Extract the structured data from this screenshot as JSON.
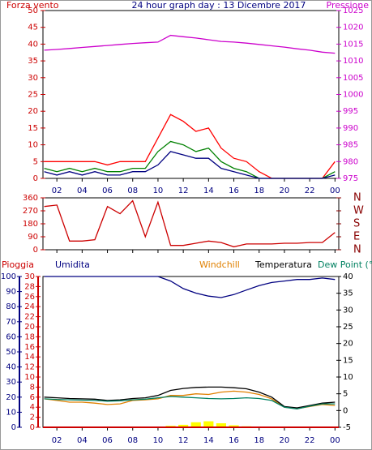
{
  "chart_data": [
    {
      "type": "line",
      "title": "24 hour graph day : 13 Dicembre 2017",
      "y_label": "Forza vento",
      "y2_label": "Pressione",
      "x": [
        1,
        2,
        3,
        4,
        5,
        6,
        7,
        8,
        9,
        10,
        11,
        12,
        13,
        14,
        15,
        16,
        17,
        18,
        19,
        20,
        21,
        22,
        23,
        24
      ],
      "xlim": [
        0.9,
        24.3
      ],
      "xticks": [
        {
          "value": 2,
          "label": "02"
        },
        {
          "value": 4,
          "label": "04"
        },
        {
          "value": 6,
          "label": "06"
        },
        {
          "value": 8,
          "label": "08"
        },
        10,
        12,
        14,
        16,
        18,
        20,
        22,
        {
          "value": 24,
          "label": "00"
        }
      ],
      "ylim": [
        0,
        50
      ],
      "yticks": [
        0,
        5,
        10,
        15,
        20,
        25,
        30,
        35,
        40,
        45,
        50
      ],
      "y2lim": [
        975,
        1025
      ],
      "y2ticks": [
        975,
        980,
        985,
        990,
        995,
        1000,
        1005,
        1010,
        1015,
        1020,
        1025
      ],
      "series": [
        {
          "color": "#cc00cc",
          "axis": "y2",
          "values": [
            1013.2,
            1013.4,
            1013.7,
            1014.0,
            1014.3,
            1014.6,
            1014.9,
            1015.2,
            1015.4,
            1015.6,
            1017.6,
            1017.2,
            1016.8,
            1016.3,
            1015.8,
            1015.6,
            1015.3,
            1014.9,
            1014.5,
            1014.1,
            1013.6,
            1013.2,
            1012.6,
            1012.3
          ]
        },
        {
          "color": "#ff0000",
          "values": [
            5,
            5,
            5,
            5,
            5,
            4,
            5,
            5,
            5,
            12,
            19,
            17,
            14,
            15,
            9,
            6,
            5,
            2,
            0,
            0,
            0,
            0,
            0,
            5
          ]
        },
        {
          "color": "#008000",
          "values": [
            3,
            2,
            3,
            2,
            3,
            2,
            2,
            3,
            3,
            8,
            11,
            10,
            8,
            9,
            5,
            3,
            2,
            0,
            0,
            0,
            0,
            0,
            0,
            2
          ]
        },
        {
          "color": "#000080",
          "values": [
            2,
            1,
            2,
            1,
            2,
            1,
            1,
            2,
            2,
            4,
            8,
            7,
            6,
            6,
            3,
            2,
            1,
            0,
            0,
            0,
            0,
            0,
            0,
            1
          ]
        }
      ]
    },
    {
      "type": "line",
      "x": [
        1,
        2,
        3,
        4,
        5,
        6,
        7,
        8,
        9,
        10,
        11,
        12,
        13,
        14,
        15,
        16,
        17,
        18,
        19,
        20,
        21,
        22,
        23,
        24
      ],
      "xlim": [
        0.9,
        24.3
      ],
      "xticks": [
        2,
        4,
        6,
        8,
        10,
        12,
        14,
        16,
        18,
        20,
        22,
        24
      ],
      "ylim": [
        0,
        360
      ],
      "yticks": [
        0,
        90,
        180,
        270,
        360
      ],
      "y2lim": [
        0,
        360
      ],
      "y2ticks": [
        {
          "value": 0,
          "label": "N"
        },
        {
          "value": 90,
          "label": "E"
        },
        {
          "value": 180,
          "label": "S"
        },
        {
          "value": 270,
          "label": "W"
        },
        {
          "value": 360,
          "label": "N"
        }
      ],
      "series": [
        {
          "color": "#cc0000",
          "values": [
            300,
            310,
            60,
            60,
            70,
            300,
            250,
            340,
            90,
            330,
            30,
            30,
            45,
            60,
            50,
            20,
            40,
            40,
            40,
            45,
            45,
            50,
            50,
            120
          ]
        }
      ]
    },
    {
      "type": "line",
      "x": [
        1,
        2,
        3,
        4,
        5,
        6,
        7,
        8,
        9,
        10,
        11,
        12,
        13,
        14,
        15,
        16,
        17,
        18,
        19,
        20,
        21,
        22,
        23,
        24
      ],
      "xlim": [
        0.9,
        24.3
      ],
      "xticks": [
        {
          "value": 2,
          "label": "02"
        },
        {
          "value": 4,
          "label": "04"
        },
        {
          "value": 6,
          "label": "06"
        },
        {
          "value": 8,
          "label": "08"
        },
        10,
        12,
        14,
        16,
        18,
        20,
        22,
        {
          "value": 24,
          "label": "00"
        }
      ],
      "ylim": [
        0,
        100
      ],
      "yticks": [
        0,
        10,
        20,
        30,
        40,
        50,
        60,
        70,
        80,
        90,
        100
      ],
      "y3lim": [
        0,
        30
      ],
      "y3ticks": [
        0,
        2,
        4,
        6,
        8,
        10,
        12,
        14,
        16,
        18,
        20,
        22,
        24,
        26,
        28,
        30
      ],
      "y2lim": [
        -5,
        40
      ],
      "y2ticks": [
        -5,
        0,
        5,
        10,
        15,
        20,
        25,
        30,
        35,
        40
      ],
      "series": [
        {
          "name": "Pioggia",
          "color": "#ffff00",
          "axis": "y3",
          "values": [
            0,
            0,
            0,
            0,
            0,
            0,
            0,
            0,
            0,
            0,
            0.3,
            0.5,
            1,
            1.2,
            0.8,
            0.4,
            0.2,
            0,
            0,
            0,
            0,
            0,
            0,
            0
          ]
        },
        {
          "name": "Umidita",
          "color": "#000080",
          "values": [
            100,
            100,
            100,
            100,
            100,
            100,
            100,
            100,
            100,
            100,
            97,
            92,
            89,
            87,
            86,
            88,
            91,
            94,
            96,
            97,
            98,
            98,
            99,
            98
          ]
        },
        {
          "name": "Windchill",
          "color": "#e08000",
          "axis": "y2",
          "values": [
            3.5,
            3,
            2.5,
            2.5,
            2.2,
            1.8,
            2,
            3,
            3.2,
            3.5,
            4.5,
            4.5,
            5,
            4.8,
            5.5,
            5.8,
            5.5,
            4.8,
            3.5,
            1,
            0.6,
            1.2,
            1.8,
            1.5
          ]
        },
        {
          "name": "Temperatura",
          "color": "#000000",
          "axis": "y2",
          "values": [
            4,
            3.8,
            3.6,
            3.5,
            3.4,
            3,
            3.2,
            3.6,
            3.8,
            4.5,
            6,
            6.6,
            6.9,
            7,
            7,
            6.8,
            6.5,
            5.5,
            4,
            1.2,
            0.8,
            1.5,
            2.2,
            2.5
          ]
        },
        {
          "name": "Dew Point (°C",
          "color": "#008060",
          "axis": "y2",
          "values": [
            3.5,
            3.3,
            3.2,
            3.1,
            3,
            2.8,
            2.9,
            3.2,
            3.4,
            3.8,
            4.2,
            4,
            3.8,
            3.6,
            3.5,
            3.6,
            3.8,
            3.6,
            3,
            1,
            0.5,
            1.3,
            2,
            2
          ]
        }
      ]
    }
  ]
}
